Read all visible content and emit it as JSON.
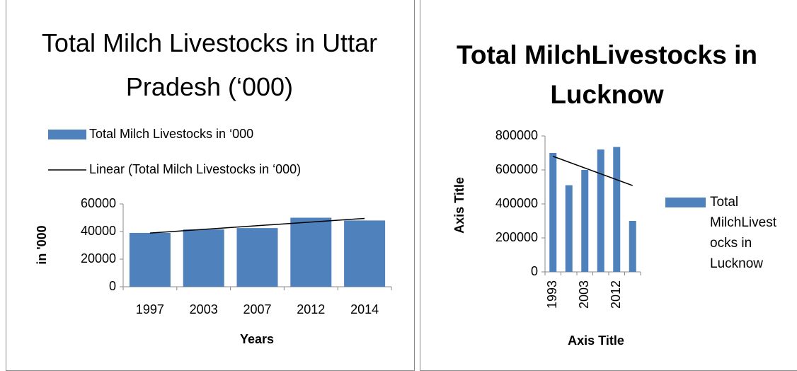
{
  "chart_data": [
    {
      "type": "bar",
      "title": "Total Milch Livestocks in Uttar Pradesh (‘000)",
      "x_label": "Years",
      "y_label": "in '000",
      "categories": [
        "1997",
        "2003",
        "2007",
        "2012",
        "2014"
      ],
      "series": [
        {
          "name": "Total Milch Livestocks in ‘000",
          "color": "#4f81bd",
          "values": [
            39000,
            41500,
            42500,
            50000,
            48000
          ]
        }
      ],
      "trendline": {
        "name": "Linear (Total Milch Livestocks in ‘000)",
        "color": "#000000"
      },
      "ylim": [
        0,
        60000
      ],
      "yticks": [
        0,
        20000,
        40000,
        60000
      ],
      "legend": "top"
    },
    {
      "type": "bar",
      "title": "Total MilchLivestocks in Lucknow",
      "x_label": "Axis Title",
      "y_label": "Axis Title",
      "categories": [
        "1993",
        null,
        "2003",
        null,
        "2012",
        null
      ],
      "series": [
        {
          "name": "Total MilchLivestocks in Lucknow",
          "color": "#4f81bd",
          "values": [
            700000,
            510000,
            600000,
            720000,
            735000,
            300000
          ]
        }
      ],
      "trendline": {
        "color": "#000000"
      },
      "ylim": [
        0,
        800000
      ],
      "yticks": [
        0,
        200000,
        400000,
        600000,
        800000
      ],
      "legend": "right"
    }
  ]
}
